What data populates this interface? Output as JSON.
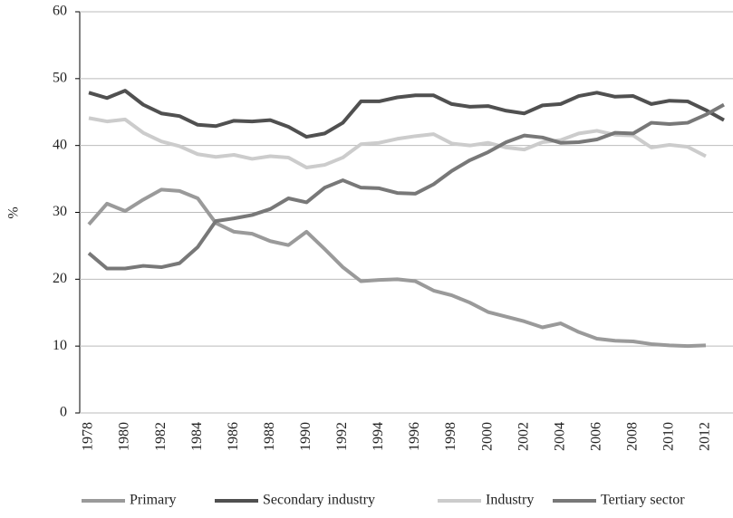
{
  "chart_data": {
    "type": "line",
    "ylabel": "%",
    "categories": [
      "1978",
      null,
      "1980",
      null,
      "1982",
      null,
      "1984",
      null,
      "1986",
      null,
      "1988",
      null,
      "1990",
      null,
      "1992",
      null,
      "1994",
      null,
      "1996",
      null,
      "1998",
      null,
      "2000",
      null,
      "2002",
      null,
      "2004",
      null,
      "2006",
      null,
      "2008",
      null,
      "2010",
      null,
      "2012",
      null
    ],
    "series": [
      {
        "name": "Primary",
        "color": "#9a9a9a",
        "values": [
          28.2,
          31.3,
          30.2,
          31.9,
          33.4,
          33.2,
          32.1,
          28.4,
          27.1,
          26.8,
          25.7,
          25.1,
          27.1,
          24.5,
          21.8,
          19.7,
          19.9,
          20.0,
          19.7,
          18.3,
          17.6,
          16.5,
          15.1,
          14.4,
          13.7,
          12.8,
          13.4,
          12.1,
          11.1,
          10.8,
          10.7,
          10.3,
          10.1,
          10.0,
          10.1,
          null
        ]
      },
      {
        "name": "Secondary industry",
        "color": "#505050",
        "values": [
          47.9,
          47.1,
          48.2,
          46.1,
          44.8,
          44.4,
          43.1,
          42.9,
          43.7,
          43.6,
          43.8,
          42.8,
          41.3,
          41.8,
          43.4,
          46.6,
          46.6,
          47.2,
          47.5,
          47.5,
          46.2,
          45.8,
          45.9,
          45.2,
          44.8,
          46.0,
          46.2,
          47.4,
          47.9,
          47.3,
          47.4,
          46.2,
          46.7,
          46.6,
          45.3,
          43.8
        ]
      },
      {
        "name": "Industry",
        "color": "#cccccc",
        "values": [
          44.1,
          43.6,
          43.9,
          41.9,
          40.6,
          39.9,
          38.7,
          38.3,
          38.6,
          38.0,
          38.4,
          38.2,
          36.7,
          37.1,
          38.2,
          40.2,
          40.4,
          41.0,
          41.4,
          41.7,
          40.3,
          40.0,
          40.4,
          39.7,
          39.4,
          40.5,
          40.8,
          41.8,
          42.2,
          41.6,
          41.5,
          39.7,
          40.1,
          39.8,
          38.4,
          null
        ]
      },
      {
        "name": "Tertiary sector",
        "color": "#787878",
        "values": [
          23.9,
          21.6,
          21.6,
          22.0,
          21.8,
          22.4,
          24.8,
          28.7,
          29.1,
          29.6,
          30.5,
          32.1,
          31.5,
          33.7,
          34.8,
          33.7,
          33.6,
          32.9,
          32.8,
          34.2,
          36.2,
          37.8,
          39.0,
          40.5,
          41.5,
          41.2,
          40.4,
          40.5,
          40.9,
          41.9,
          41.8,
          43.4,
          43.2,
          43.4,
          44.6,
          46.1
        ]
      }
    ],
    "ylim": [
      0,
      60
    ],
    "yticks": [
      0,
      10,
      20,
      30,
      40,
      50,
      60
    ],
    "grid": true
  }
}
